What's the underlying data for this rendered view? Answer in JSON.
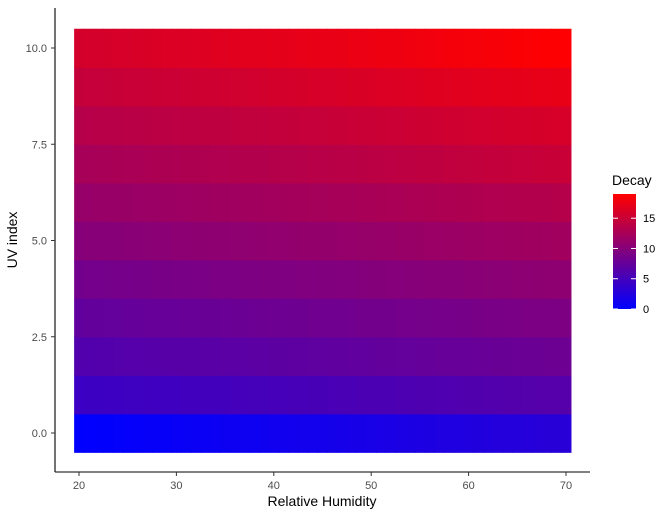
{
  "chart_data": {
    "type": "heatmap",
    "title": "",
    "xlabel": "Relative Humidity",
    "ylabel": "UV index",
    "x_range": [
      20,
      70
    ],
    "y_range": [
      0,
      10
    ],
    "x_ticks": [
      20,
      30,
      40,
      50,
      60,
      70
    ],
    "x_tick_labels": [
      "20",
      "30",
      "40",
      "50",
      "60",
      "70"
    ],
    "y_ticks": [
      0,
      2.5,
      5,
      7.5,
      10
    ],
    "y_tick_labels": [
      "0.0",
      "2.5",
      "5.0",
      "7.5",
      "10.0"
    ],
    "grid": false,
    "legend": {
      "title": "Decay",
      "position": "right",
      "min": 0,
      "max": 19,
      "breaks": [
        0,
        5,
        10,
        15
      ],
      "break_labels": [
        "0",
        "5",
        "10",
        "15"
      ],
      "low_color": "#0000ff",
      "high_color": "#ff0000"
    },
    "x": [
      20,
      21,
      22,
      23,
      24,
      25,
      26,
      27,
      28,
      29,
      30,
      31,
      32,
      33,
      34,
      35,
      36,
      37,
      38,
      39,
      40,
      41,
      42,
      43,
      44,
      45,
      46,
      47,
      48,
      49,
      50,
      51,
      52,
      53,
      54,
      55,
      56,
      57,
      58,
      59,
      60,
      61,
      62,
      63,
      64,
      65,
      66,
      67,
      68,
      69,
      70
    ],
    "y": [
      0,
      1,
      2,
      3,
      4,
      5,
      6,
      7,
      8,
      9,
      10
    ],
    "value_model": {
      "description": "Decay(x, y) = y_base[y] + x_slope[y] * (x - 20)",
      "y_base": [
        0.0,
        4.4,
        6.1,
        7.3,
        8.6,
        10.0,
        11.2,
        12.4,
        13.5,
        14.6,
        15.7
      ],
      "x_slope": [
        0.06,
        0.04,
        0.04,
        0.04,
        0.04,
        0.04,
        0.045,
        0.05,
        0.05,
        0.055,
        0.065
      ]
    }
  }
}
